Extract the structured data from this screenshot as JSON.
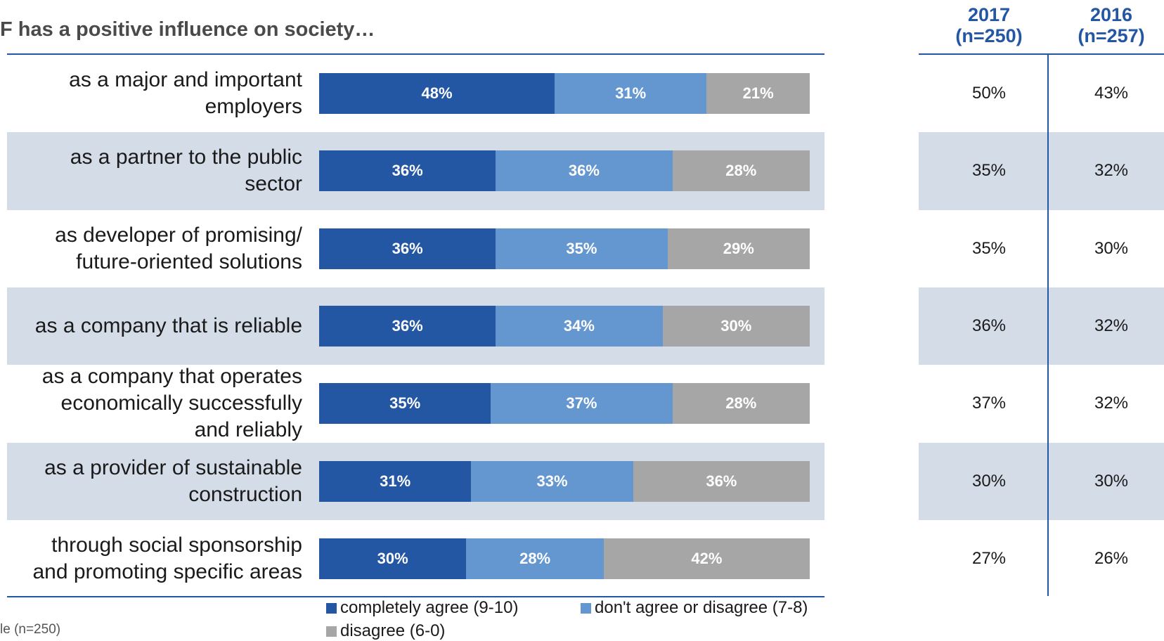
{
  "title": "F has a positive influence on society…",
  "columns": [
    {
      "year": "2017",
      "n": "(n=250)"
    },
    {
      "year": "2016",
      "n": "(n=257)"
    }
  ],
  "colors": {
    "completely_agree": "#2457a3",
    "neutral": "#6497d0",
    "disagree": "#a6a6a6",
    "band": "#d4dce8",
    "rule": "#2457a3"
  },
  "legend": [
    {
      "label": "completely agree (9-10)",
      "color": "#2457a3"
    },
    {
      "label": "don't agree or disagree (7-8)",
      "color": "#6497d0"
    },
    {
      "label": "disagree (6-0)",
      "color": "#a6a6a6"
    }
  ],
  "footnote": "le (n=250)",
  "chart_data": {
    "type": "bar",
    "stacked": true,
    "orientation": "horizontal",
    "unit": "%",
    "categories": [
      [
        "as a major and important",
        "employers"
      ],
      [
        "as a partner to the public",
        "sector"
      ],
      [
        "as developer of promising/",
        "future-oriented solutions"
      ],
      [
        "as a company that is reliable"
      ],
      [
        "as a company that operates",
        "economically successfully",
        "and reliably"
      ],
      [
        "as a provider of sustainable",
        "construction"
      ],
      [
        "through social sponsorship",
        "and promoting specific areas"
      ]
    ],
    "series": [
      {
        "name": "completely agree (9-10)",
        "values": [
          48,
          36,
          36,
          36,
          35,
          31,
          30
        ]
      },
      {
        "name": "don't agree or disagree (7-8)",
        "values": [
          31,
          36,
          35,
          34,
          37,
          33,
          28
        ]
      },
      {
        "name": "disagree (6-0)",
        "values": [
          21,
          28,
          29,
          30,
          28,
          36,
          42
        ]
      }
    ],
    "table": {
      "2017": [
        "50%",
        "35%",
        "35%",
        "36%",
        "37%",
        "30%",
        "27%"
      ],
      "2016": [
        "43%",
        "32%",
        "30%",
        "32%",
        "32%",
        "30%",
        "26%"
      ]
    }
  }
}
